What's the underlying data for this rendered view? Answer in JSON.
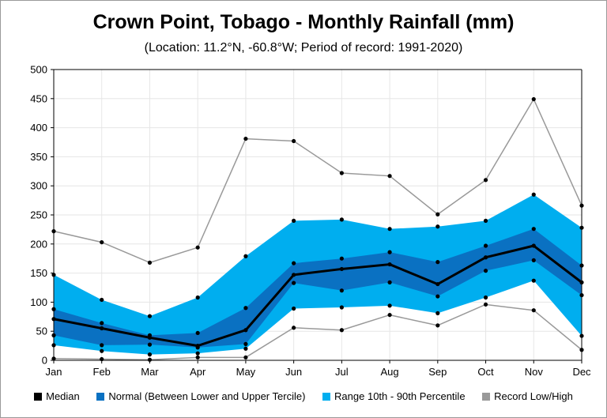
{
  "chart_data": {
    "type": "area",
    "title": "Crown Point, Tobago - Monthly Rainfall (mm)",
    "subtitle": "(Location: 11.2°N, -60.8°W; Period of record: 1991-2020)",
    "categories": [
      "Jan",
      "Feb",
      "Mar",
      "Apr",
      "May",
      "Jun",
      "Jul",
      "Aug",
      "Sep",
      "Oct",
      "Nov",
      "Dec"
    ],
    "ylim": [
      0,
      500
    ],
    "yticks": [
      0,
      50,
      100,
      150,
      200,
      250,
      300,
      350,
      400,
      450,
      500
    ],
    "grid": true,
    "legend_position": "bottom",
    "series": [
      {
        "name": "Median",
        "values": [
          71,
          55,
          39,
          25,
          52,
          147,
          157,
          165,
          131,
          177,
          197,
          134
        ]
      },
      {
        "name": "Normal (Between Lower and Upper Tercile)",
        "lower": [
          43,
          26,
          27,
          22,
          28,
          133,
          120,
          134,
          110,
          154,
          172,
          112
        ],
        "upper": [
          88,
          64,
          43,
          47,
          90,
          167,
          175,
          186,
          169,
          197,
          226,
          163
        ]
      },
      {
        "name": "Range 10th - 90th Percentile",
        "lower": [
          26,
          16,
          10,
          12,
          20,
          89,
          91,
          94,
          81,
          108,
          137,
          42
        ],
        "upper": [
          147,
          104,
          76,
          108,
          179,
          240,
          242,
          226,
          230,
          240,
          285,
          228
        ]
      },
      {
        "name": "Record Low/High",
        "lower": [
          3,
          2,
          1,
          5,
          5,
          56,
          52,
          78,
          60,
          96,
          86,
          18
        ],
        "upper": [
          222,
          203,
          168,
          194,
          381,
          377,
          322,
          317,
          251,
          310,
          449,
          266
        ]
      }
    ],
    "colors": {
      "median": "#000000",
      "normal": "#0a71c2",
      "range": "#00aeef",
      "record": "#999999",
      "grid": "#e6e6e6"
    }
  }
}
